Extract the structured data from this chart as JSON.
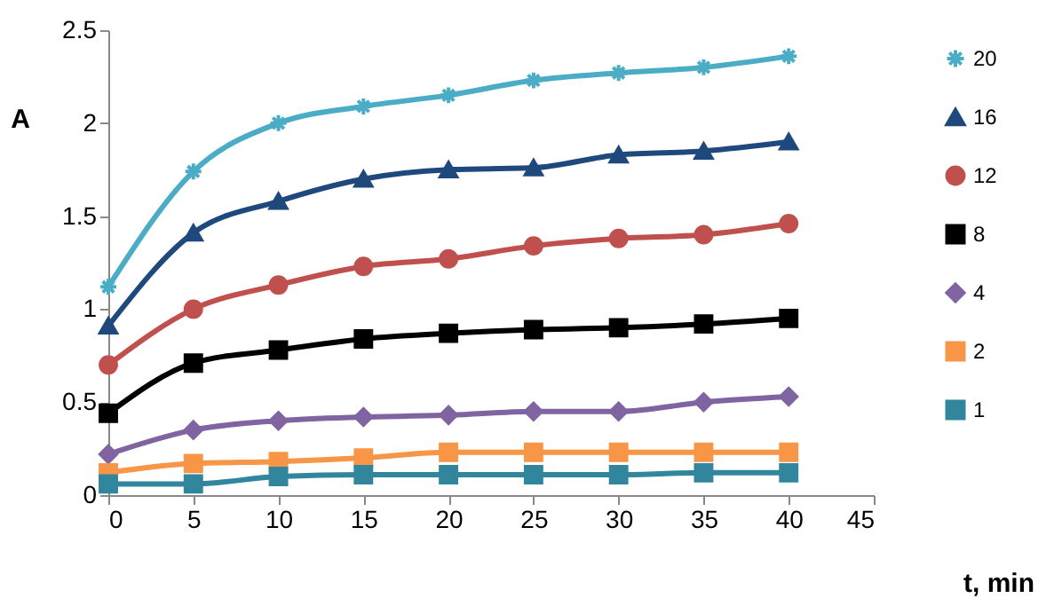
{
  "chart_data": {
    "type": "line",
    "xlabel": "t, min",
    "ylabel": "A",
    "x": [
      0,
      5,
      10,
      15,
      20,
      25,
      30,
      35,
      40
    ],
    "xlim": [
      0,
      45
    ],
    "xticks": [
      0,
      5,
      10,
      15,
      20,
      25,
      30,
      35,
      40,
      45
    ],
    "ylim": [
      0,
      2.5
    ],
    "yticks": [
      0,
      0.5,
      1,
      1.5,
      2,
      2.5
    ],
    "grid": false,
    "legend": "right",
    "line_style": "solid",
    "series": [
      {
        "name": "20",
        "color": "#4bacc6",
        "marker": "cross",
        "values": [
          1.12,
          1.74,
          2.0,
          2.09,
          2.15,
          2.23,
          2.27,
          2.3,
          2.36
        ]
      },
      {
        "name": "16",
        "color": "#1f497d",
        "marker": "triangle",
        "values": [
          0.91,
          1.41,
          1.58,
          1.7,
          1.75,
          1.76,
          1.83,
          1.85,
          1.9
        ]
      },
      {
        "name": "12",
        "color": "#c0504d",
        "marker": "circle",
        "values": [
          0.7,
          1.0,
          1.13,
          1.23,
          1.27,
          1.34,
          1.38,
          1.4,
          1.46
        ]
      },
      {
        "name": "8",
        "color": "#000000",
        "marker": "square",
        "values": [
          0.44,
          0.71,
          0.78,
          0.84,
          0.87,
          0.89,
          0.9,
          0.92,
          0.95
        ]
      },
      {
        "name": "4",
        "color": "#8064a2",
        "marker": "diamond",
        "values": [
          0.22,
          0.35,
          0.4,
          0.42,
          0.43,
          0.45,
          0.45,
          0.5,
          0.53
        ]
      },
      {
        "name": "2",
        "color": "#f79646",
        "marker": "square",
        "values": [
          0.12,
          0.17,
          0.18,
          0.2,
          0.23,
          0.23,
          0.23,
          0.23,
          0.23
        ]
      },
      {
        "name": "1",
        "color": "#31859c",
        "marker": "square",
        "values": [
          0.06,
          0.06,
          0.1,
          0.11,
          0.11,
          0.11,
          0.11,
          0.12,
          0.12
        ]
      }
    ]
  }
}
